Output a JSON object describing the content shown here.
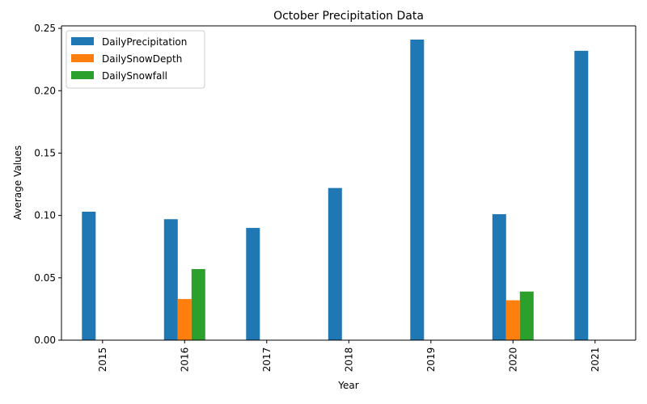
{
  "chart_data": {
    "type": "bar",
    "title": "October Precipitation Data",
    "xlabel": "Year",
    "ylabel": "Average Values",
    "categories": [
      "2015",
      "2016",
      "2017",
      "2018",
      "2019",
      "2020",
      "2021"
    ],
    "series": [
      {
        "name": "DailyPrecipitation",
        "color": "#1f77b4",
        "values": [
          0.103,
          0.097,
          0.09,
          0.122,
          0.241,
          0.101,
          0.232
        ]
      },
      {
        "name": "DailySnowDepth",
        "color": "#ff7f0e",
        "values": [
          0,
          0.033,
          0,
          0,
          0,
          0.032,
          0
        ]
      },
      {
        "name": "DailySnowfall",
        "color": "#2ca02c",
        "values": [
          0,
          0.057,
          0,
          0,
          0,
          0.039,
          0
        ]
      }
    ],
    "ylim": [
      0,
      0.252
    ],
    "yticks": [
      "0.00",
      "0.05",
      "0.10",
      "0.15",
      "0.20",
      "0.25"
    ],
    "xtick_rotation": "vertical",
    "grid": false,
    "legend_position": "upper-left"
  }
}
